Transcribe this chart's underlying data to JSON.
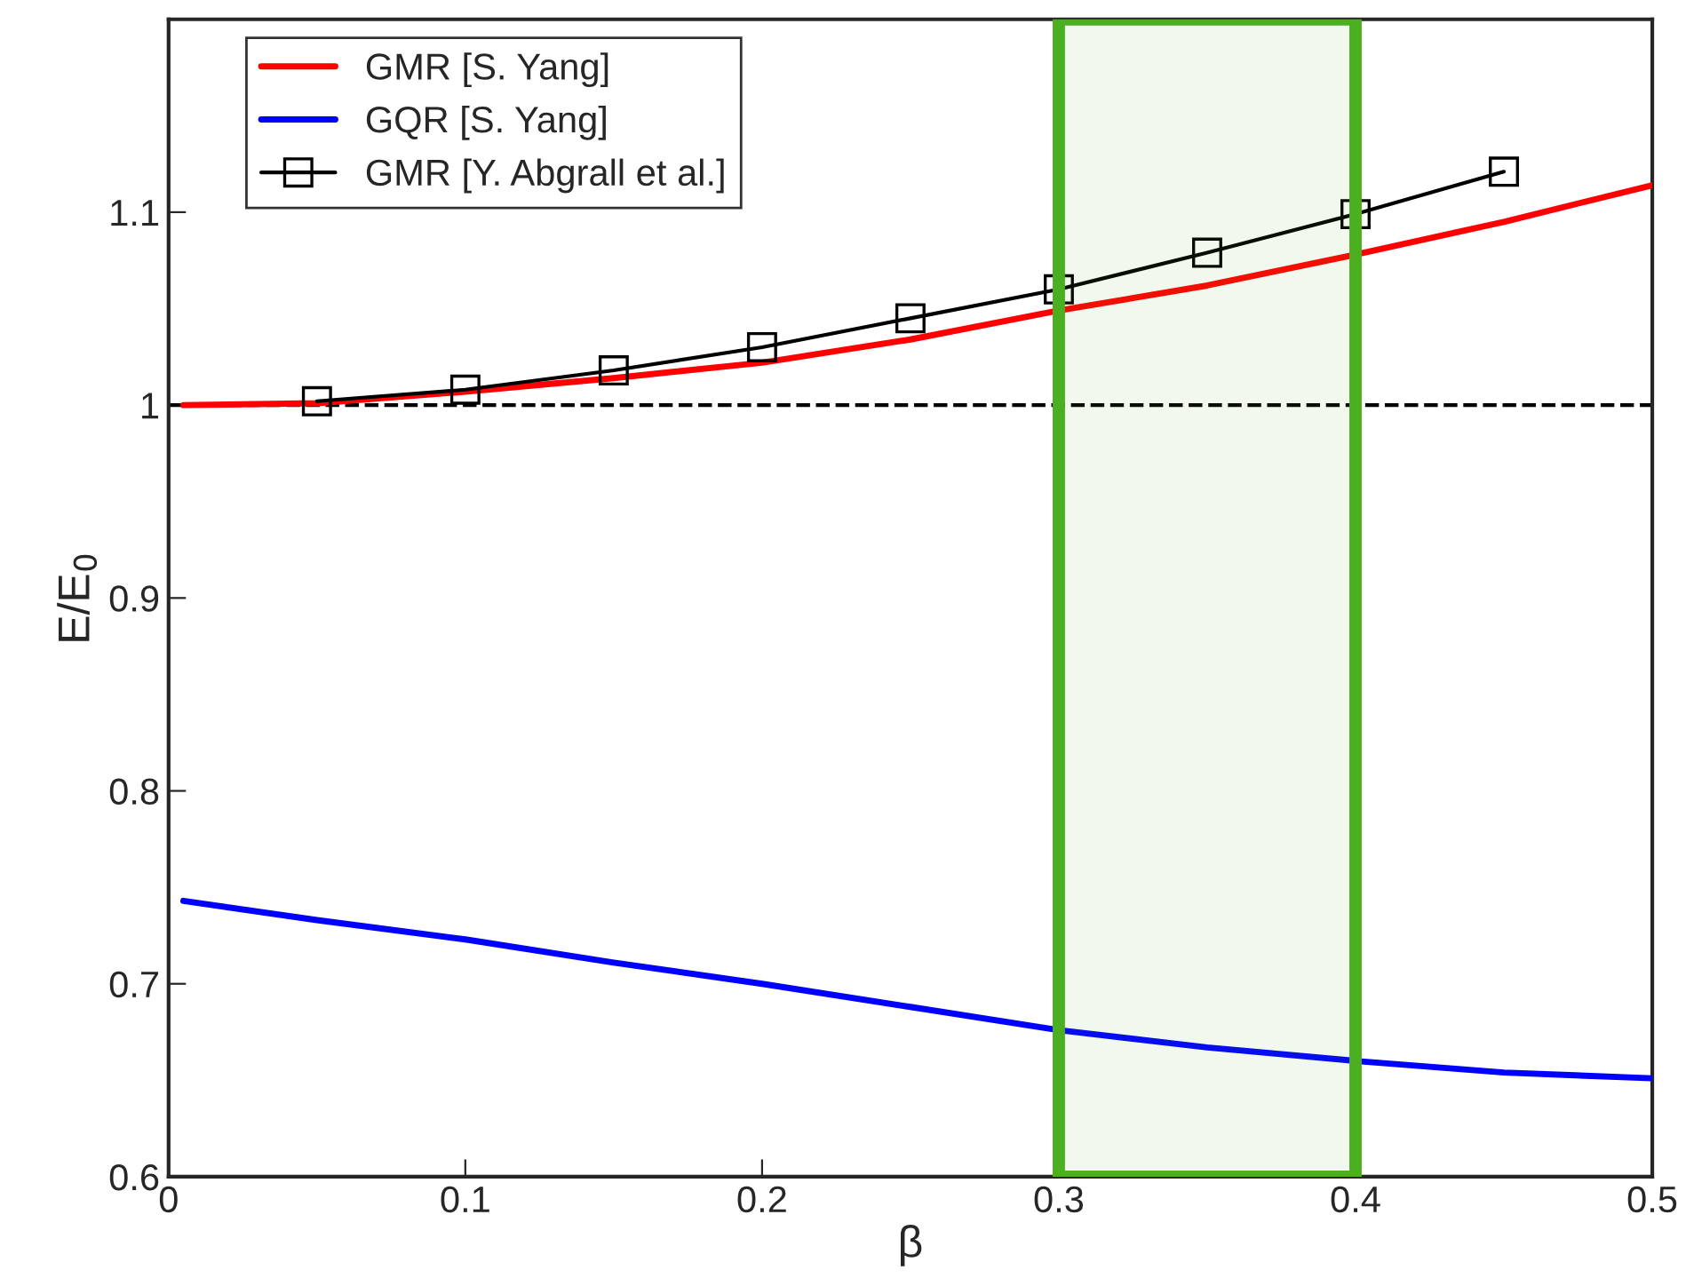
{
  "chart_data": {
    "type": "line",
    "xlabel": "β",
    "ylabel": "E/E$_{0}$",
    "xlim": [
      0,
      0.5
    ],
    "ylim": [
      0.6,
      1.2
    ],
    "xticks": [
      0,
      0.1,
      0.2,
      0.3,
      0.4,
      0.5
    ],
    "yticks": [
      0.6,
      0.7,
      0.8,
      0.9,
      1,
      1.1
    ],
    "grid": false,
    "legend": "top left",
    "marker": "none",
    "line_style": "solid",
    "series": [
      {
        "name": "GMR [S. Yang]",
        "color": "#ff0000",
        "x": [
          0.005,
          0.05,
          0.1,
          0.15,
          0.2,
          0.25,
          0.3,
          0.35,
          0.4,
          0.45,
          0.5
        ],
        "values": [
          1.0,
          1.001,
          1.007,
          1.014,
          1.022,
          1.034,
          1.049,
          1.062,
          1.078,
          1.095,
          1.114
        ]
      },
      {
        "name": "GQR [S. Yang]",
        "color": "#0000ff",
        "x": [
          0.005,
          0.05,
          0.1,
          0.15,
          0.2,
          0.25,
          0.3,
          0.35,
          0.4,
          0.45,
          0.5
        ],
        "values": [
          0.743,
          0.733,
          0.723,
          0.711,
          0.7,
          0.688,
          0.676,
          0.667,
          0.66,
          0.654,
          0.651
        ]
      },
      {
        "name": "GMR [Y. Abgrall et al.]",
        "color": "#000000",
        "marker": "square",
        "x": [
          0.05,
          0.1,
          0.15,
          0.2,
          0.25,
          0.3,
          0.35,
          0.4,
          0.45
        ],
        "values": [
          1.002,
          1.008,
          1.018,
          1.03,
          1.045,
          1.06,
          1.079,
          1.099,
          1.121
        ]
      }
    ],
    "ref_lines": [
      {
        "axis": "y",
        "value": 1,
        "color": "#000000",
        "line_style": "dashed"
      }
    ],
    "bands": [
      {
        "axis": "x",
        "from": 0.3,
        "to": 0.4,
        "color": "#4caf20"
      }
    ]
  }
}
